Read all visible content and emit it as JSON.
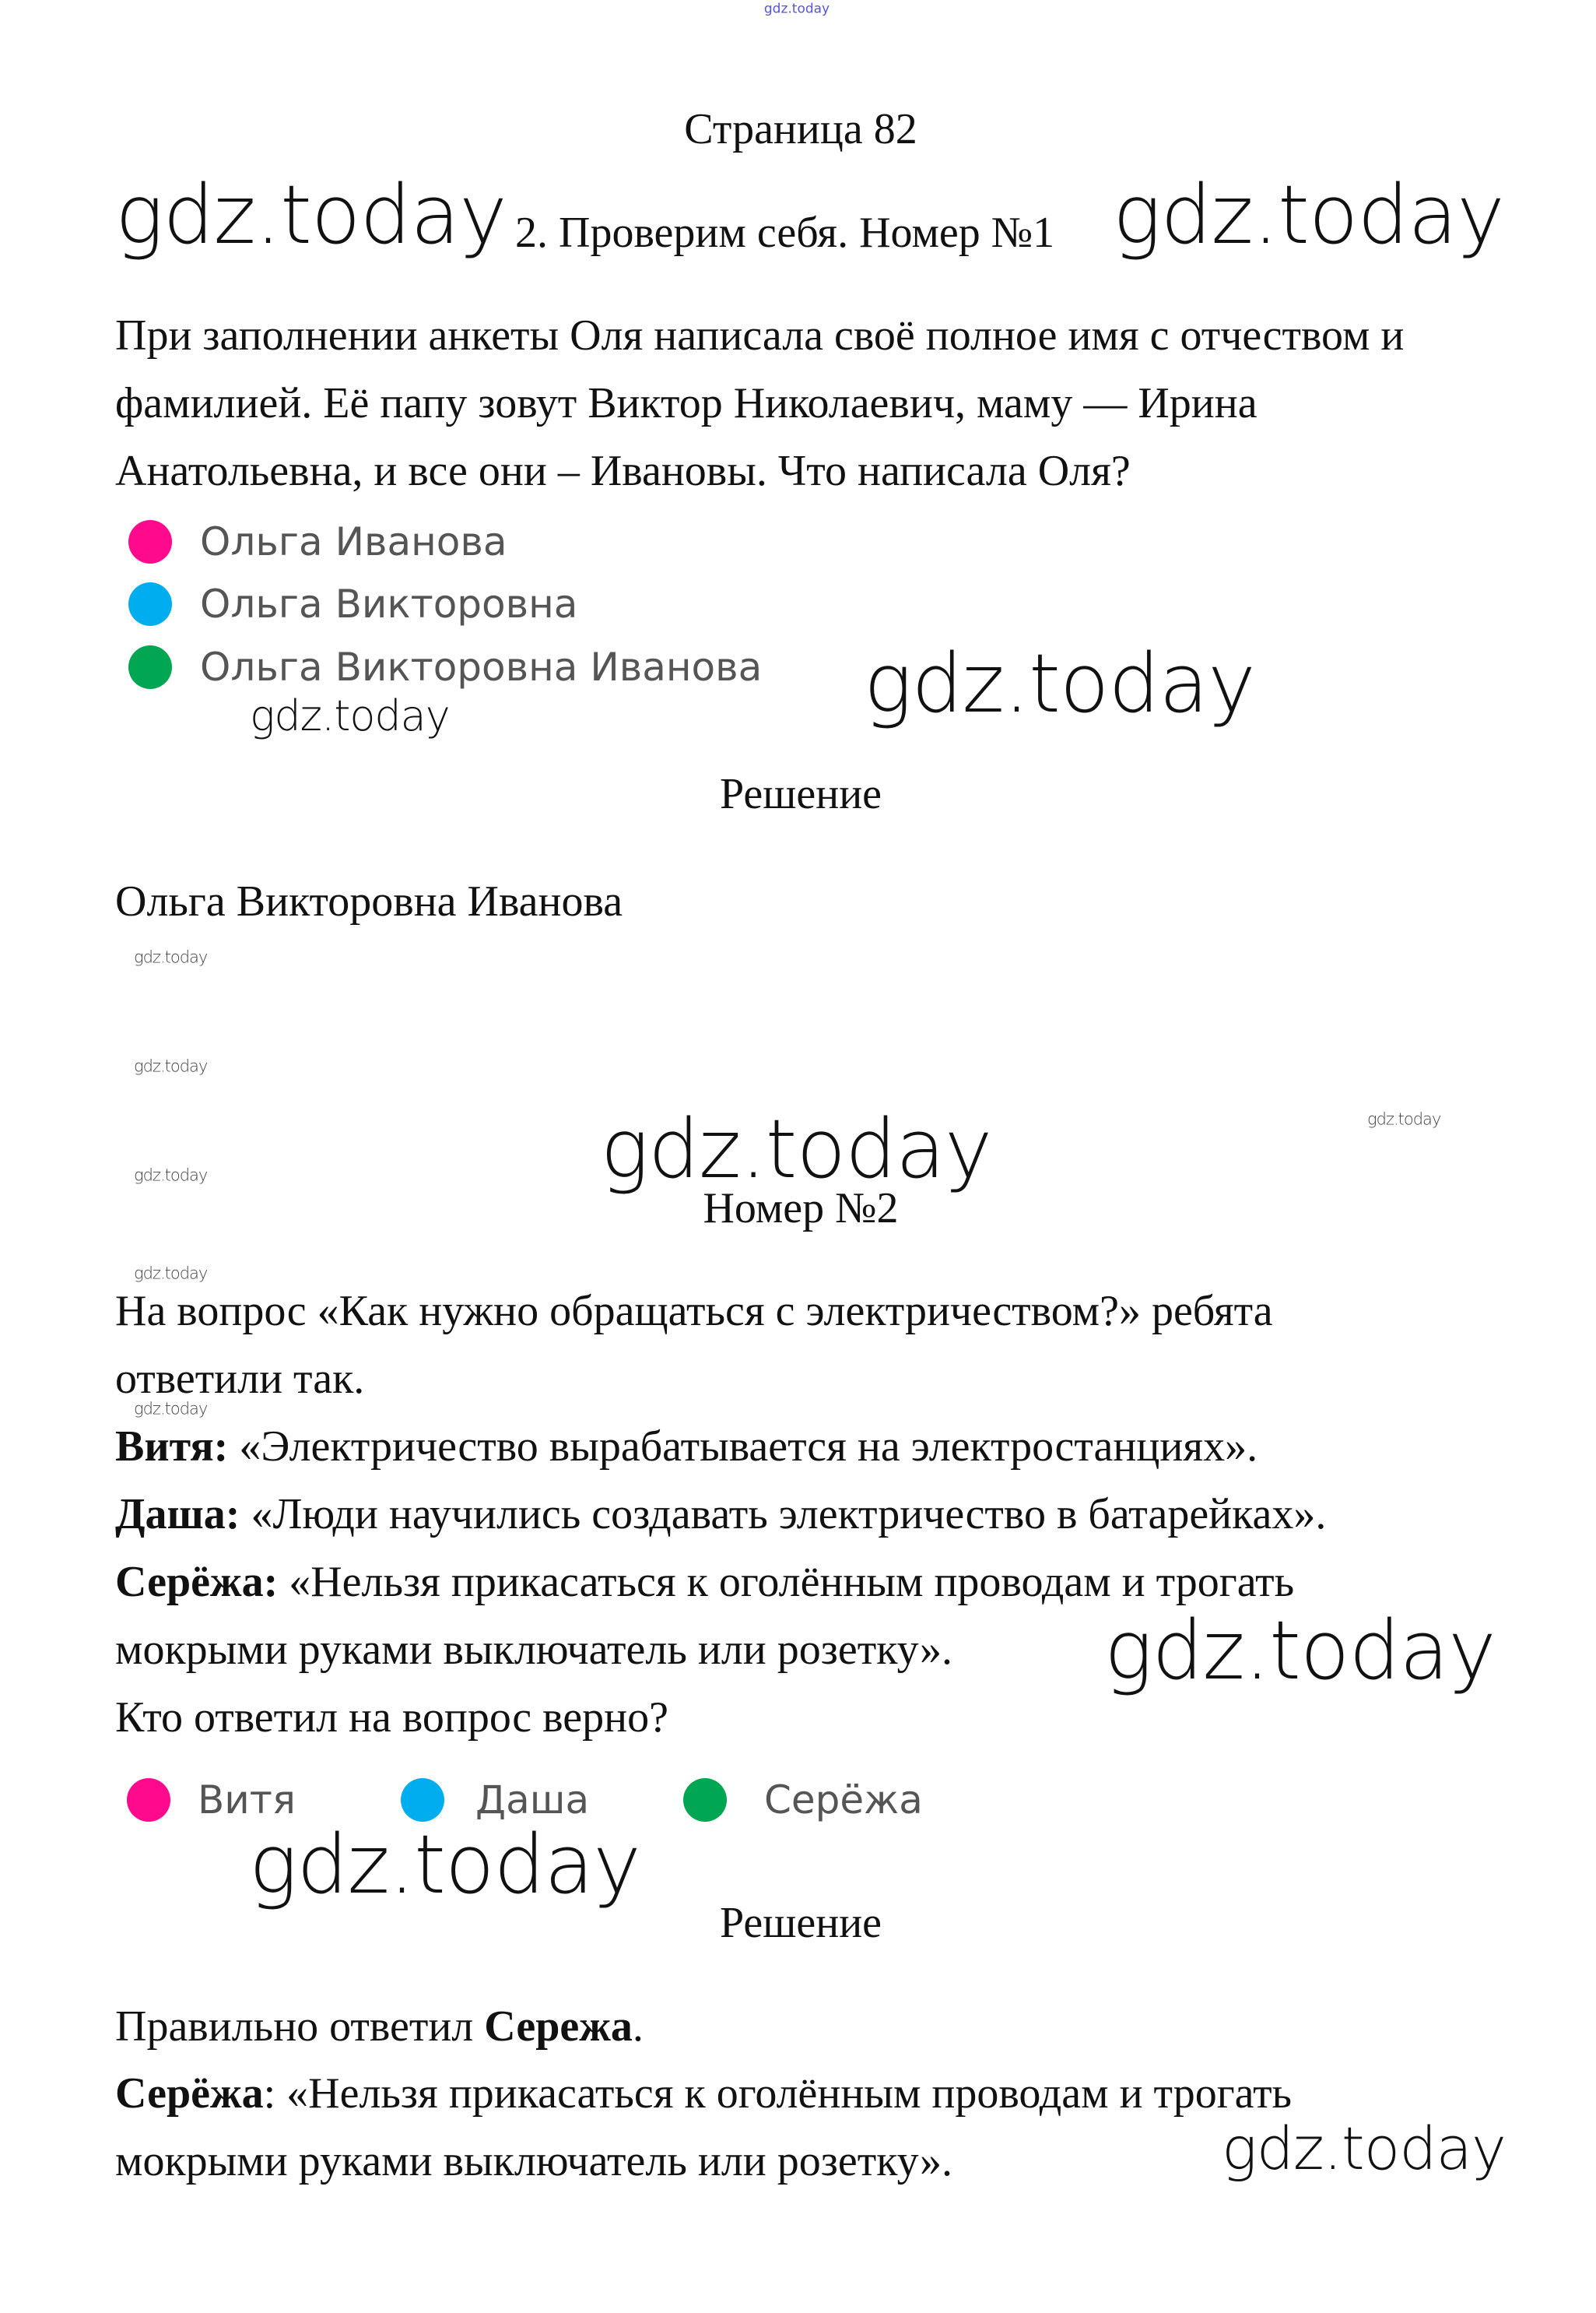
{
  "watermark": "gdz.today",
  "page_title": "Страница 82",
  "task1": {
    "heading": "2. Проверим себя. Номер №1",
    "lines": [
      "При заполнении анкеты Оля написала своё полное имя с отчеством и",
      "фамилией. Её папу зовут Виктор Николаевич, маму — Ирина",
      "Анатольевна, и все они – Ивановы. Что написала Оля?"
    ],
    "options": [
      {
        "label": "Ольга  Иванова",
        "color": "#ff0a8c"
      },
      {
        "label": "Ольга  Викторовна",
        "color": "#00aeef"
      },
      {
        "label": "Ольга  Викторовна  Иванова",
        "color": "#00a651"
      }
    ],
    "solution_label": "Решение",
    "solution": "Ольга Викторовна Иванова"
  },
  "task2": {
    "heading": "Номер №2",
    "lines": [
      "На вопрос «Как нужно обращаться с электричеством?» ребята",
      "ответили так."
    ],
    "answers": [
      {
        "name": "Витя:",
        "text": " «Электричество вырабатывается на электростанциях»."
      },
      {
        "name": "Даша:",
        "text": " «Люди научились создавать электричество в батарейках»."
      },
      {
        "name": "Серёжа:",
        "text": " «Нельзя прикасаться к оголённым проводам и трогать"
      }
    ],
    "answer_cont": "мокрыми руками выключатель или розетку».",
    "question": "Кто ответил на вопрос верно?",
    "options": [
      {
        "label": "Витя",
        "color": "#ff0a8c"
      },
      {
        "label": "Даша",
        "color": "#00aeef"
      },
      {
        "label": "Серёжа",
        "color": "#00a651"
      }
    ],
    "solution_label": "Решение",
    "solution_prefix": "Правильно ответил ",
    "solution_name": "Сережа",
    "solution_suffix": ".",
    "solution_quote_name": "Серёжа",
    "solution_quote_line1": ": «Нельзя прикасаться к оголённым проводам и трогать",
    "solution_quote_line2": "мокрыми руками выключатель или розетку»."
  }
}
